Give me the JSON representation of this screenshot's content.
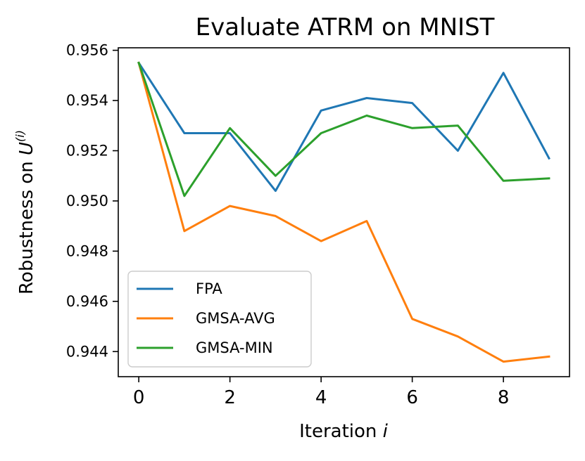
{
  "chart_data": {
    "type": "line",
    "title": "Evaluate ATRM on MNIST",
    "xlabel_text": "Iteration ",
    "xlabel_var": "i",
    "ylabel_text": "Robustness on ",
    "ylabel_var": "U",
    "ylabel_sup": "(i)",
    "x": [
      0,
      1,
      2,
      3,
      4,
      5,
      6,
      7,
      8,
      9
    ],
    "xlim": [
      -0.45,
      9.45
    ],
    "ylim": [
      0.943,
      0.9561
    ],
    "xticks": [
      "0",
      "2",
      "4",
      "6",
      "8"
    ],
    "yticks": [
      "0.944",
      "0.946",
      "0.948",
      "0.950",
      "0.952",
      "0.954",
      "0.956"
    ],
    "legend_position": "lower-left",
    "series": [
      {
        "name": "FPA",
        "color": "#1f77b4",
        "values": [
          0.9555,
          0.9527,
          0.9527,
          0.9504,
          0.9536,
          0.9541,
          0.9539,
          0.952,
          0.9551,
          0.9517
        ]
      },
      {
        "name": "GMSA-AVG",
        "color": "#ff7f0e",
        "values": [
          0.9555,
          0.9488,
          0.9498,
          0.9494,
          0.9484,
          0.9492,
          0.9453,
          0.9446,
          0.9436,
          0.9438
        ]
      },
      {
        "name": "GMSA-MIN",
        "color": "#2ca02c",
        "values": [
          0.9555,
          0.9502,
          0.9529,
          0.951,
          0.9527,
          0.9534,
          0.9529,
          0.953,
          0.9508,
          0.9509
        ]
      }
    ]
  }
}
